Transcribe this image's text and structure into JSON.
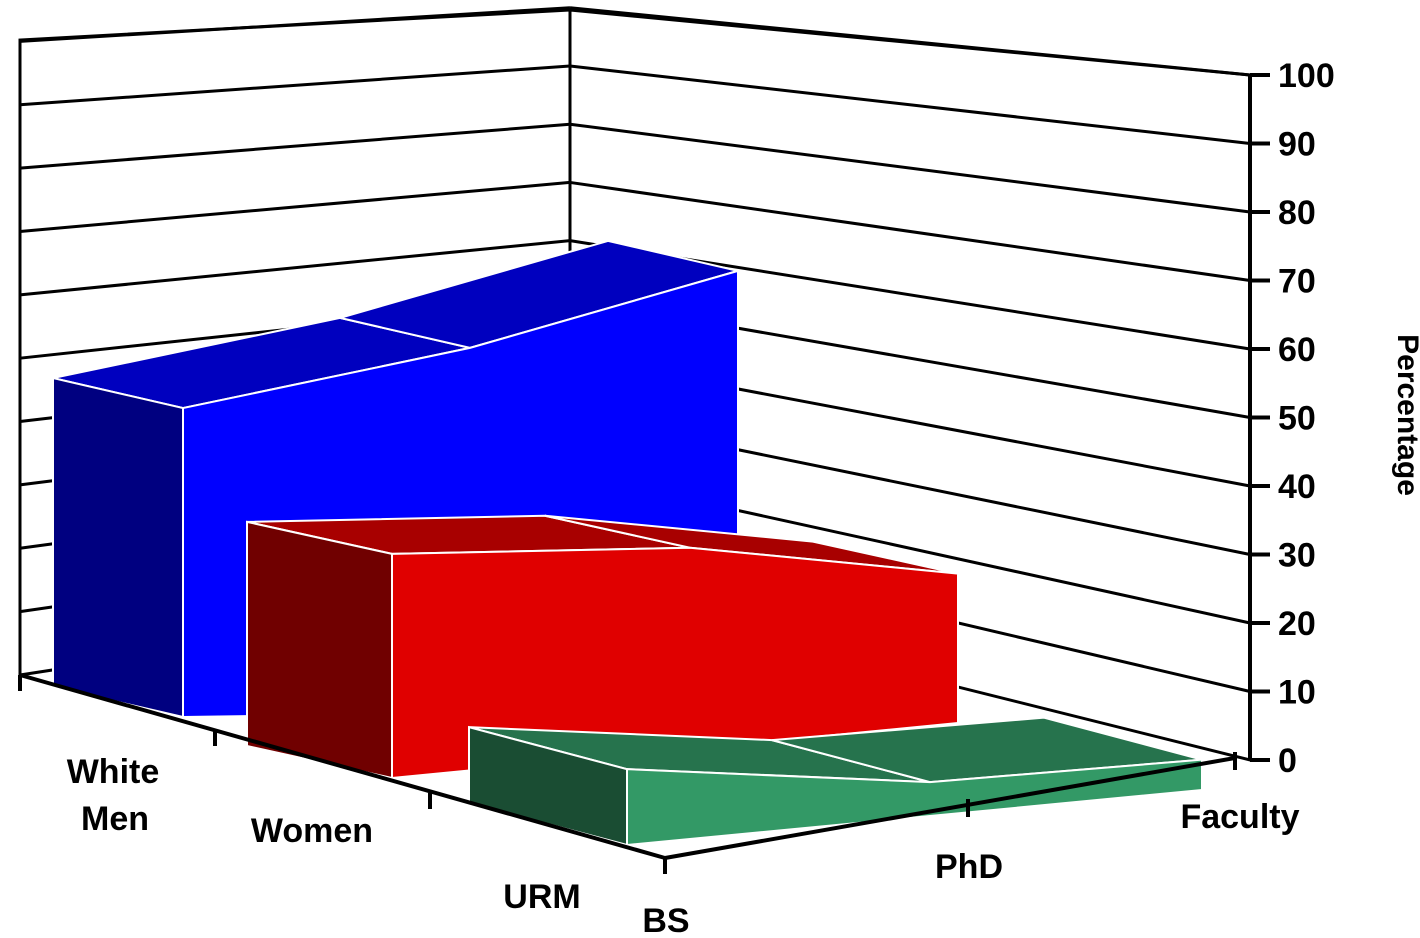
{
  "chart_data": {
    "type": "area",
    "is_3d": true,
    "categories": [
      "BS",
      "PhD",
      "Faculty"
    ],
    "series": [
      {
        "name": "White Men",
        "values": [
          55,
          65,
          78
        ],
        "color": "#0000ff"
      },
      {
        "name": "Women",
        "values": [
          42,
          38,
          28
        ],
        "color": "#e00000"
      },
      {
        "name": "URM",
        "values": [
          15,
          7,
          6
        ],
        "color": "#339966"
      }
    ],
    "y_ticks": [
      "0",
      "10",
      "20",
      "30",
      "40",
      "50",
      "60",
      "70",
      "80",
      "90",
      "100"
    ],
    "ylim": [
      0,
      100
    ],
    "ylabel": "Percentage",
    "grid": true,
    "legend": "none"
  }
}
